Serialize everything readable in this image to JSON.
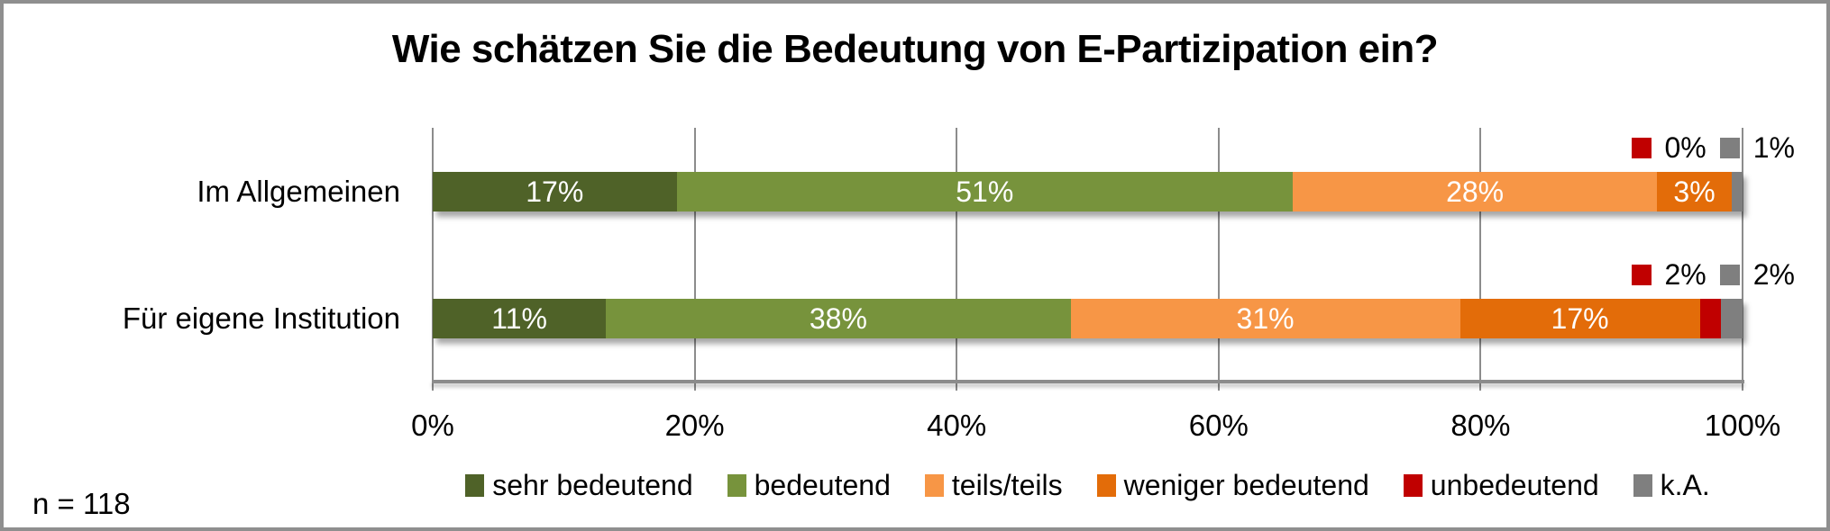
{
  "chart_data": {
    "type": "bar",
    "orientation": "horizontal",
    "stacked": true,
    "title": "Wie schätzen Sie die Bedeutung von E-Partizipation ein?",
    "categories": [
      "Im Allgemeinen",
      "Für eigene Institution"
    ],
    "series": [
      {
        "name": "sehr bedeutend",
        "color": "#4F6228",
        "values": [
          17,
          11
        ]
      },
      {
        "name": "bedeutend",
        "color": "#77933C",
        "values": [
          51,
          38
        ]
      },
      {
        "name": "teils/teils",
        "color": "#F79646",
        "values": [
          28,
          31
        ]
      },
      {
        "name": "weniger bedeutend",
        "color": "#E36C09",
        "values": [
          3,
          17
        ]
      },
      {
        "name": "unbedeutend",
        "color": "#C00000",
        "values": [
          0,
          2
        ]
      },
      {
        "name": "k.A.",
        "color": "#7F7F7F",
        "values": [
          1,
          2
        ]
      }
    ],
    "value_suffix": "%",
    "min_inbar_label_value": 3,
    "xlim": [
      0,
      100
    ],
    "x_ticks": [
      "0%",
      "20%",
      "40%",
      "60%",
      "80%",
      "100%"
    ],
    "grid": true,
    "legend_position": "bottom",
    "callouts": [
      {
        "items": [
          {
            "series": "unbedeutend",
            "color": "#C00000",
            "text": "0%"
          },
          {
            "series": "k.A.",
            "color": "#7F7F7F",
            "text": "1%"
          }
        ]
      },
      {
        "items": [
          {
            "series": "unbedeutend",
            "color": "#C00000",
            "text": "2%"
          },
          {
            "series": "k.A.",
            "color": "#7F7F7F",
            "text": "2%"
          }
        ]
      }
    ],
    "sample_note": "n = 118"
  },
  "colors": {
    "gridline": "#8c8c8c",
    "axis": "#8c8c8c",
    "frame_border": "#8f8f8f",
    "inbar_text": "#ffffff",
    "text": "#000000"
  }
}
